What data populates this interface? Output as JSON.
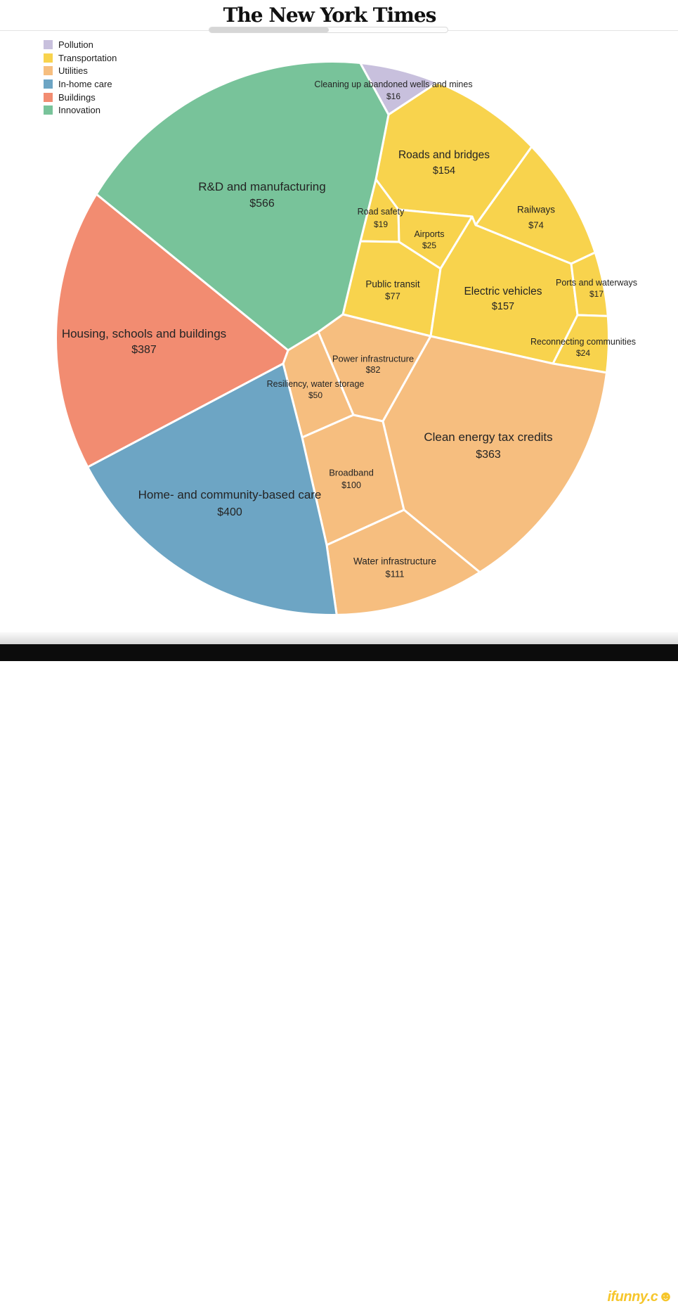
{
  "masthead": {
    "title": "The New York Times"
  },
  "legend": {
    "items": [
      {
        "id": "pollution",
        "label": "Pollution",
        "color": "#c8c0dd"
      },
      {
        "id": "transportation",
        "label": "Transportation",
        "color": "#f8d34d"
      },
      {
        "id": "utilities",
        "label": "Utilities",
        "color": "#f6be7f"
      },
      {
        "id": "inhome",
        "label": "In-home care",
        "color": "#6da5c4"
      },
      {
        "id": "buildings",
        "label": "Buildings",
        "color": "#f28c71"
      },
      {
        "id": "innovation",
        "label": "Innovation",
        "color": "#78c39a"
      }
    ]
  },
  "chart_data": {
    "type": "pie",
    "variant": "voronoi-treemap-circle",
    "legend_position": "top-left",
    "value_prefix": "$",
    "groups": [
      {
        "name": "Pollution",
        "color": "#c8c0dd",
        "segments": [
          {
            "id": "cleaning",
            "label": "Cleaning up abandoned wells and mines",
            "value": 16,
            "value_label": "$16"
          }
        ]
      },
      {
        "name": "Transportation",
        "color": "#f8d34d",
        "segments": [
          {
            "id": "roads",
            "label": "Roads and bridges",
            "value": 154,
            "value_label": "$154"
          },
          {
            "id": "railways",
            "label": "Railways",
            "value": 74,
            "value_label": "$74"
          },
          {
            "id": "roadsafety",
            "label": "Road safety",
            "value": 19,
            "value_label": "$19"
          },
          {
            "id": "airports",
            "label": "Airports",
            "value": 25,
            "value_label": "$25"
          },
          {
            "id": "transit",
            "label": "Public transit",
            "value": 77,
            "value_label": "$77"
          },
          {
            "id": "ev",
            "label": "Electric vehicles",
            "value": 157,
            "value_label": "$157"
          },
          {
            "id": "ports",
            "label": "Ports and waterways",
            "value": 17,
            "value_label": "$17"
          },
          {
            "id": "reconnect",
            "label": "Reconnecting communities",
            "value": 24,
            "value_label": "$24"
          }
        ]
      },
      {
        "name": "Utilities",
        "color": "#f6be7f",
        "segments": [
          {
            "id": "power",
            "label": "Power infrastructure",
            "value": 82,
            "value_label": "$82"
          },
          {
            "id": "resiliency",
            "label": "Resiliency, water storage",
            "value": 50,
            "value_label": "$50"
          },
          {
            "id": "broadband",
            "label": "Broadband",
            "value": 100,
            "value_label": "$100"
          },
          {
            "id": "clean",
            "label": "Clean energy tax credits",
            "value": 363,
            "value_label": "$363"
          },
          {
            "id": "water",
            "label": "Water infrastructure",
            "value": 111,
            "value_label": "$111"
          }
        ]
      },
      {
        "name": "In-home care",
        "color": "#6da5c4",
        "segments": [
          {
            "id": "homecare",
            "label": "Home- and community-based care",
            "value": 400,
            "value_label": "$400"
          }
        ]
      },
      {
        "name": "Buildings",
        "color": "#f28c71",
        "segments": [
          {
            "id": "housing",
            "label": "Housing, schools and buildings",
            "value": 387,
            "value_label": "$387"
          }
        ]
      },
      {
        "name": "Innovation",
        "color": "#78c39a",
        "segments": [
          {
            "id": "rd",
            "label": "R&D and manufacturing",
            "value": 566,
            "value_label": "$566"
          }
        ]
      }
    ]
  },
  "watermark": {
    "text": "ifunny.c",
    "smiley": "☻"
  }
}
